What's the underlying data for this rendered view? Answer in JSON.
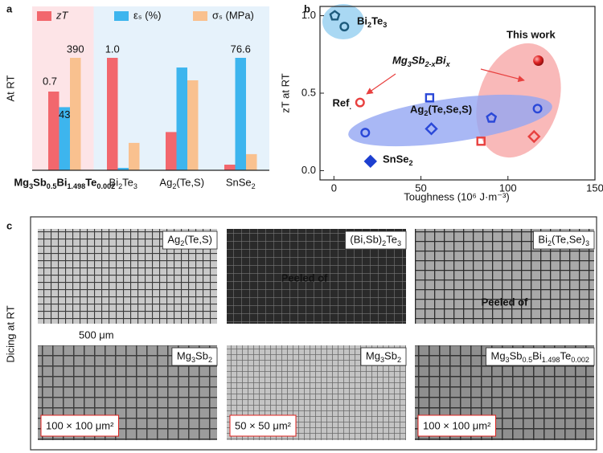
{
  "chart_data": [
    {
      "type": "bar",
      "panel": "a",
      "ylabel": "At RT",
      "categories": [
        "Mg3Sb0.5Bi1.498Te0.002",
        "Bi2Te3",
        "Ag2(Te,S)",
        "SnSe2"
      ],
      "series": [
        {
          "name": "zT",
          "color": "#f2676d",
          "values": [
            0.7,
            1.0,
            0.34,
            0.05
          ],
          "value_labels": [
            "0.7",
            "1.0",
            null,
            null
          ]
        },
        {
          "name": "εₛ (%)",
          "color": "#3db5ee",
          "values": [
            43,
            1.6,
            70,
            76.6
          ],
          "value_labels": [
            "43",
            null,
            null,
            "76.6"
          ]
        },
        {
          "name": "σₛ (MPa)",
          "color": "#f9c18f",
          "values": [
            390,
            95,
            312,
            56
          ],
          "value_labels": [
            "390",
            null,
            null,
            null
          ]
        }
      ]
    },
    {
      "type": "scatter",
      "panel": "b",
      "xlabel": "Toughness (10⁶ J·m⁻³)",
      "ylabel": "zT at RT",
      "xlim": [
        -8,
        150
      ],
      "xticks": [
        0,
        50,
        100,
        150
      ],
      "ylim": [
        -0.06,
        1.06
      ],
      "yticks": [
        {
          "value": 0,
          "label": "0.0"
        },
        {
          "value": 0.5,
          "label": "0.5"
        },
        {
          "value": 1,
          "label": "1.0"
        }
      ],
      "series": [
        {
          "name": "Bi2Te3",
          "color": "#1d5b7c",
          "x": [
            0.5,
            6
          ],
          "values": [
            1.0,
            0.93
          ],
          "markers": [
            "pentagon",
            "circle"
          ],
          "filled": false
        },
        {
          "name": "Ref.",
          "color": "#e8403f",
          "x": [
            15
          ],
          "values": [
            0.44
          ],
          "markers": [
            "circle"
          ],
          "filled": false
        },
        {
          "name": "Ag2(Te,Se,S)",
          "color": "#2a48d8",
          "x": [
            18,
            55,
            56,
            90.5,
            117
          ],
          "values": [
            0.245,
            0.47,
            0.27,
            0.34,
            0.4
          ],
          "markers": [
            "circle",
            "square",
            "diamond",
            "pentagon",
            "circle"
          ],
          "filled": false
        },
        {
          "name": "SnSe2",
          "color": "#1d3fd0",
          "x": [
            21
          ],
          "values": [
            0.06
          ],
          "markers": [
            "diamond"
          ],
          "filled": true
        },
        {
          "name": "Mg3Sb2-xBix",
          "color": "#e8403f",
          "x": [
            84.5,
            115
          ],
          "values": [
            0.19,
            0.22
          ],
          "markers": [
            "square",
            "diamond"
          ],
          "filled": false
        },
        {
          "name": "This work",
          "color": "#e02525",
          "x": [
            117.5
          ],
          "values": [
            0.71
          ],
          "markers": [
            "sphere"
          ],
          "filled": true
        }
      ]
    }
  ],
  "panel_c": {
    "label": "c",
    "ylabel": "Dicing at RT",
    "scale_bar": "500 μm",
    "images": [
      {
        "material": "Ag2(Te,S)"
      },
      {
        "material": "(Bi,Sb)2Te3",
        "note": "Peeled of"
      },
      {
        "material": "Bi2(Te,Se)3",
        "note": "Peeled of"
      },
      {
        "material": "Mg3Sb2",
        "size": "100 × 100 μm²"
      },
      {
        "material": "Mg3Sb2",
        "size": "50 × 50 μm²"
      },
      {
        "material": "Mg3Sb0.5Bi1.498Te0.002",
        "size": "100 × 100 μm²"
      }
    ]
  }
}
